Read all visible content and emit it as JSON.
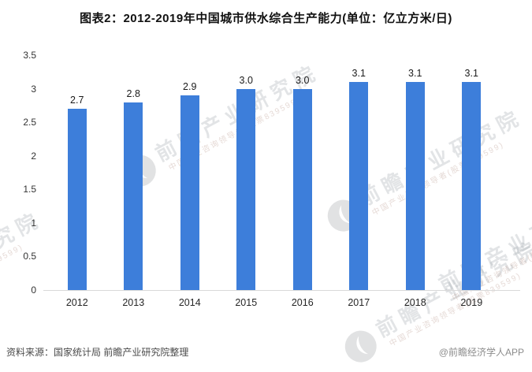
{
  "title": "图表2：2012-2019年中国城市供水综合生产能力(单位：亿立方米/日)",
  "chart_data": {
    "type": "bar",
    "title": "图表2：2012-2019年中国城市供水综合生产能力(单位：亿立方米/日)",
    "categories": [
      "2012",
      "2013",
      "2014",
      "2015",
      "2016",
      "2017",
      "2018",
      "2019"
    ],
    "values": [
      2.7,
      2.8,
      2.9,
      3.0,
      3.0,
      3.1,
      3.1,
      3.1
    ],
    "value_labels": [
      "2.7",
      "2.8",
      "2.9",
      "3.0",
      "3.0",
      "3.1",
      "3.1",
      "3.1"
    ],
    "xlabel": "",
    "ylabel": "",
    "ylim": [
      0,
      3.5
    ],
    "yticks": [
      0,
      0.5,
      1,
      1.5,
      2,
      2.5,
      3,
      3.5
    ],
    "ytick_labels": [
      "0",
      "0.5",
      "1",
      "1.5",
      "2",
      "2.5",
      "3",
      "3.5"
    ],
    "grid": false,
    "legend": "none",
    "bar_color": "#3D7EDA"
  },
  "footer": {
    "source": "资料来源：国家统计局 前瞻产业研究院整理",
    "credit": "@前瞻经济学人APP"
  },
  "watermark": {
    "brand": "前瞻产业研究院",
    "subtext": "中国产业咨询领导者(股票839599)",
    "logo": "qianzhan-logo"
  }
}
